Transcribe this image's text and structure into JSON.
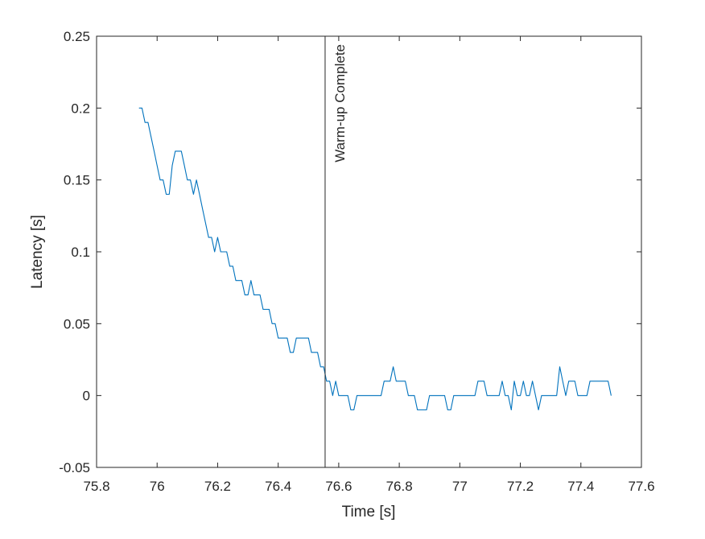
{
  "chart_data": {
    "type": "line",
    "title": "",
    "xlabel": "Time [s]",
    "ylabel": "Latency [s]",
    "xlim": [
      75.8,
      77.6
    ],
    "ylim": [
      -0.05,
      0.25
    ],
    "xticks": [
      75.8,
      76,
      76.2,
      76.4,
      76.6,
      76.8,
      77,
      77.2,
      77.4,
      77.6
    ],
    "xtick_labels": [
      "75.8",
      "76",
      "76.2",
      "76.4",
      "76.6",
      "76.8",
      "77",
      "77.2",
      "77.4",
      "77.6"
    ],
    "yticks": [
      -0.05,
      0,
      0.05,
      0.1,
      0.15,
      0.2,
      0.25
    ],
    "ytick_labels": [
      "-0.05",
      "0",
      "0.05",
      "0.1",
      "0.15",
      "0.2",
      "0.25"
    ],
    "grid": false,
    "legend": null,
    "line_color": "#0072bd",
    "x_start": 75.94,
    "x_step": 0.01,
    "series": [
      {
        "name": "Latency",
        "values": [
          0.2,
          0.2,
          0.19,
          0.19,
          0.18,
          0.17,
          0.16,
          0.15,
          0.15,
          0.14,
          0.14,
          0.16,
          0.17,
          0.17,
          0.17,
          0.16,
          0.15,
          0.15,
          0.14,
          0.15,
          0.14,
          0.13,
          0.12,
          0.11,
          0.11,
          0.1,
          0.11,
          0.1,
          0.1,
          0.1,
          0.09,
          0.09,
          0.08,
          0.08,
          0.08,
          0.07,
          0.07,
          0.08,
          0.07,
          0.07,
          0.07,
          0.06,
          0.06,
          0.06,
          0.05,
          0.05,
          0.04,
          0.04,
          0.04,
          0.04,
          0.03,
          0.03,
          0.04,
          0.04,
          0.04,
          0.04,
          0.04,
          0.03,
          0.03,
          0.03,
          0.02,
          0.02,
          0.01,
          0.01,
          0.0,
          0.01,
          0.0,
          0.0,
          0.0,
          0.0,
          -0.01,
          -0.01,
          0.0,
          0.0,
          0.0,
          0.0,
          0.0,
          0.0,
          0.0,
          0.0,
          0.0,
          0.01,
          0.01,
          0.01,
          0.02,
          0.01,
          0.01,
          0.01,
          0.01,
          0.0,
          0.0,
          0.0,
          -0.01,
          -0.01,
          -0.01,
          -0.01,
          0.0,
          0.0,
          0.0,
          0.0,
          0.0,
          0.0,
          -0.01,
          -0.01,
          0.0,
          0.0,
          0.0,
          0.0,
          0.0,
          0.0,
          0.0,
          0.0,
          0.01,
          0.01,
          0.01,
          0.0,
          0.0,
          0.0,
          0.0,
          0.0,
          0.01,
          0.0,
          0.0,
          -0.01,
          0.01,
          0.0,
          0.0,
          0.01,
          0.0,
          0.0,
          0.01,
          0.0,
          -0.01,
          0.0,
          0.0,
          0.0,
          0.0,
          0.0,
          0.0,
          0.02,
          0.01,
          0.0,
          0.01,
          0.01,
          0.01,
          0.0,
          0.0,
          0.0,
          0.0,
          0.01,
          0.01,
          0.01,
          0.01,
          0.01,
          0.01,
          0.01,
          0.0
        ]
      }
    ],
    "annotations": [
      {
        "type": "vline",
        "x": 76.555,
        "color": "#262626"
      },
      {
        "type": "text",
        "text": "Warm-up Complete",
        "x": 76.555,
        "rotation": -90,
        "anchor": "top"
      }
    ]
  }
}
